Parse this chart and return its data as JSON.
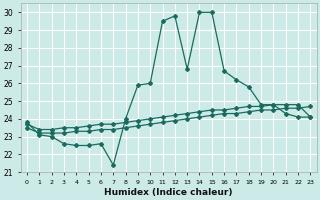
{
  "xlabel": "Humidex (Indice chaleur)",
  "background_color": "#cceae7",
  "grid_color": "#ffffff",
  "line_color": "#1a6b5e",
  "xlim": [
    -0.5,
    23.5
  ],
  "ylim": [
    21,
    30.5
  ],
  "yticks": [
    21,
    22,
    23,
    24,
    25,
    26,
    27,
    28,
    29,
    30
  ],
  "xticks": [
    0,
    1,
    2,
    3,
    4,
    5,
    6,
    7,
    8,
    9,
    10,
    11,
    12,
    13,
    14,
    15,
    16,
    17,
    18,
    19,
    20,
    21,
    22,
    23
  ],
  "series1_x": [
    0,
    1,
    2,
    3,
    4,
    5,
    6,
    7,
    8,
    9,
    10,
    11,
    12,
    13,
    14,
    15,
    16,
    17,
    18,
    19,
    20,
    21,
    22,
    23
  ],
  "series1_y": [
    23.8,
    23.1,
    23.0,
    22.6,
    22.5,
    22.5,
    22.6,
    21.4,
    24.0,
    25.9,
    26.0,
    29.5,
    29.8,
    26.8,
    30.0,
    30.0,
    26.7,
    26.2,
    25.8,
    24.8,
    24.8,
    24.3,
    24.1,
    24.1
  ],
  "series2_x": [
    0,
    1,
    2,
    3,
    4,
    5,
    6,
    7,
    8,
    9,
    10,
    11,
    12,
    13,
    14,
    15,
    16,
    17,
    18,
    19,
    20,
    21,
    22,
    23
  ],
  "series2_y": [
    23.5,
    23.2,
    23.2,
    23.2,
    23.3,
    23.3,
    23.4,
    23.4,
    23.5,
    23.6,
    23.7,
    23.8,
    23.9,
    24.0,
    24.1,
    24.2,
    24.3,
    24.3,
    24.4,
    24.5,
    24.5,
    24.6,
    24.6,
    24.7
  ],
  "series3_x": [
    0,
    1,
    2,
    3,
    4,
    5,
    6,
    7,
    8,
    9,
    10,
    11,
    12,
    13,
    14,
    15,
    16,
    17,
    18,
    19,
    20,
    21,
    22,
    23
  ],
  "series3_y": [
    23.7,
    23.4,
    23.4,
    23.5,
    23.5,
    23.6,
    23.7,
    23.7,
    23.8,
    23.9,
    24.0,
    24.1,
    24.2,
    24.3,
    24.4,
    24.5,
    24.5,
    24.6,
    24.7,
    24.7,
    24.8,
    24.8,
    24.8,
    24.1
  ]
}
